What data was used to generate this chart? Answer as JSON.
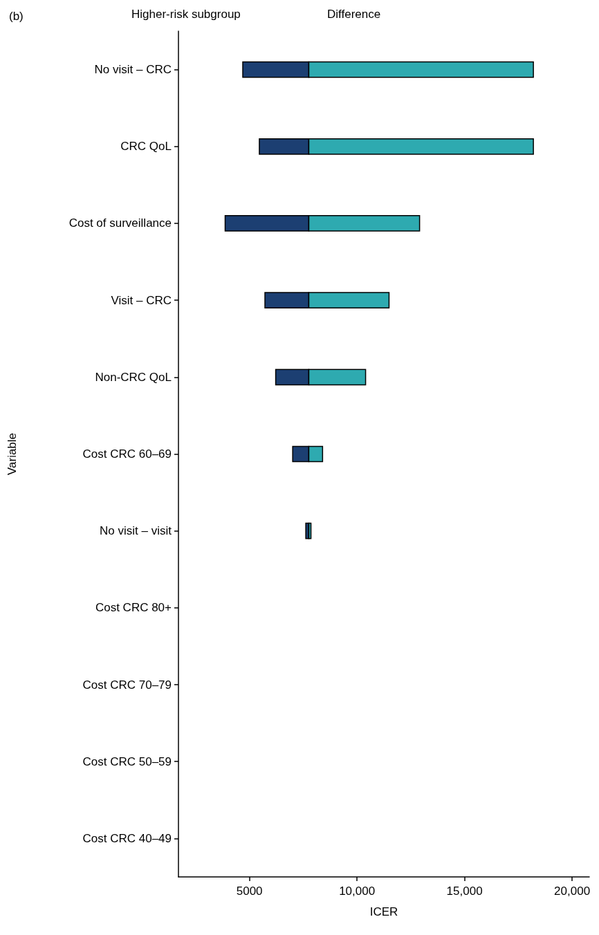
{
  "chart_data": {
    "type": "bar",
    "orientation": "horizontal",
    "title": "(b)",
    "xlabel": "ICER",
    "ylabel": "Variable",
    "annotations": [
      "Higher-risk subgroup",
      "Difference"
    ],
    "categories": [
      "No visit – CRC",
      "CRC QoL",
      "Cost of surveillance",
      "Visit – CRC",
      "Non-CRC QoL",
      "Cost CRC 60–69",
      "No visit – visit",
      "Cost CRC 80+",
      "Cost CRC 70–79",
      "Cost CRC 50–59",
      "Cost CRC 40–49"
    ],
    "series": [
      {
        "color": "#1c3f72",
        "base": [
          4690,
          5460,
          3870,
          5720,
          6220,
          7010,
          7620,
          null,
          null,
          null,
          null
        ],
        "values": [
          3070,
          2300,
          3890,
          2040,
          1540,
          750,
          140,
          null,
          null,
          null,
          null
        ]
      },
      {
        "color": "#2eaab0",
        "base": [
          7760,
          7760,
          7760,
          7760,
          7760,
          7760,
          7760,
          null,
          null,
          null,
          null
        ],
        "values": [
          10440,
          10440,
          5150,
          3730,
          2640,
          640,
          100,
          null,
          null,
          null,
          null
        ]
      }
    ],
    "xlim": [
      1700,
      20800
    ],
    "xticks": [
      5000,
      {
        "value": 10000,
        "label": "10,000"
      },
      {
        "value": 15000,
        "label": "15,000"
      },
      {
        "value": 20000,
        "label": "20,000"
      }
    ],
    "grid": false
  }
}
